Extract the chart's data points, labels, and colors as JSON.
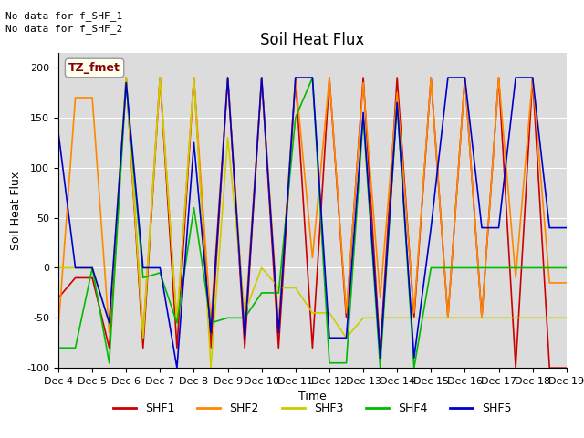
{
  "title": "Soil Heat Flux",
  "ylabel": "Soil Heat Flux",
  "xlabel": "Time",
  "ylim": [
    -100,
    215
  ],
  "text_lines": [
    "No data for f_SHF_1",
    "No data for f_SHF_2"
  ],
  "annotation": "TZ_fmet",
  "x_tick_labels": [
    "Dec 4",
    "Dec 5",
    "Dec 6",
    "Dec 7",
    "Dec 8",
    "Dec 9",
    "Dec 10",
    "Dec 11",
    "Dec 12",
    "Dec 13",
    "Dec 14",
    "Dec 15",
    "Dec 16",
    "Dec 17",
    "Dec 18",
    "Dec 19"
  ],
  "series": {
    "SHF1": {
      "color": "#cc0000",
      "x": [
        0,
        0.5,
        1,
        1.5,
        2,
        2.5,
        3,
        3.5,
        4,
        4.5,
        5,
        5.5,
        6,
        6.5,
        7,
        7.5,
        8,
        8.5,
        9,
        9.5,
        10,
        10.5,
        11,
        11.5,
        12,
        12.5,
        13,
        13.5,
        14,
        14.5,
        15
      ],
      "y": [
        -30,
        -10,
        -10,
        -80,
        190,
        -80,
        190,
        -80,
        190,
        -80,
        190,
        -80,
        190,
        -80,
        190,
        -80,
        190,
        -50,
        190,
        -85,
        190,
        -50,
        190,
        -50,
        190,
        -50,
        190,
        -100,
        190,
        -100,
        -100
      ]
    },
    "SHF2": {
      "color": "#ff8800",
      "x": [
        0,
        0.5,
        1,
        1.5,
        2,
        2.5,
        3,
        3.5,
        4,
        4.5,
        5,
        5.5,
        6,
        6.5,
        7,
        7.5,
        8,
        8.5,
        9,
        9.5,
        10,
        10.5,
        11,
        11.5,
        12,
        12.5,
        13,
        13.5,
        14,
        14.5,
        15
      ],
      "y": [
        -60,
        170,
        170,
        -65,
        190,
        -65,
        190,
        -55,
        190,
        -55,
        190,
        -60,
        190,
        -55,
        190,
        10,
        190,
        -45,
        185,
        -30,
        175,
        -45,
        190,
        -50,
        190,
        -50,
        190,
        -10,
        190,
        -15,
        -15
      ]
    },
    "SHF3": {
      "color": "#cccc00",
      "x": [
        0,
        0.5,
        1,
        1.5,
        2,
        2.5,
        3,
        3.5,
        4,
        4.5,
        5,
        5.5,
        6,
        6.5,
        7,
        7.5,
        8,
        8.5,
        9,
        9.5,
        10,
        10.5,
        11,
        11.5,
        12,
        12.5,
        13,
        13.5,
        14,
        14.5,
        15
      ],
      "y": [
        0,
        0,
        0,
        -55,
        190,
        -70,
        190,
        -55,
        190,
        -100,
        130,
        -45,
        0,
        -20,
        -20,
        -45,
        -45,
        -70,
        -50,
        -50,
        -50,
        -50,
        -50,
        -50,
        -50,
        -50,
        -50,
        -50,
        -50,
        -50,
        -50
      ]
    },
    "SHF4": {
      "color": "#00bb00",
      "x": [
        0,
        0.5,
        1,
        1.5,
        2,
        2.5,
        3,
        3.5,
        4,
        4.5,
        5,
        5.5,
        6,
        6.5,
        7,
        7.5,
        8,
        8.5,
        9,
        9.5,
        10,
        10.5,
        11,
        11.5,
        12,
        12.5,
        13,
        13.5,
        14,
        14.5,
        15
      ],
      "y": [
        -80,
        -80,
        0,
        -95,
        185,
        -10,
        -5,
        -55,
        60,
        -55,
        -50,
        -50,
        -25,
        -25,
        150,
        190,
        -95,
        -95,
        150,
        -100,
        165,
        -100,
        0,
        0,
        0,
        0,
        0,
        0,
        0,
        0,
        0
      ]
    },
    "SHF5": {
      "color": "#0000cc",
      "x": [
        0,
        0.5,
        1,
        1.5,
        2,
        2.5,
        3,
        3.5,
        4,
        4.5,
        5,
        5.5,
        6,
        6.5,
        7,
        7.5,
        8,
        8.5,
        9,
        9.5,
        10,
        10.5,
        11,
        11.5,
        12,
        12.5,
        13,
        13.5,
        14,
        14.5,
        15
      ],
      "y": [
        135,
        0,
        0,
        -55,
        185,
        0,
        0,
        -100,
        125,
        -65,
        190,
        -70,
        190,
        -65,
        190,
        190,
        -70,
        -70,
        155,
        -90,
        165,
        -90,
        40,
        190,
        190,
        40,
        40,
        190,
        190,
        40,
        40
      ]
    }
  },
  "legend": [
    {
      "label": "SHF1",
      "color": "#cc0000"
    },
    {
      "label": "SHF2",
      "color": "#ff8800"
    },
    {
      "label": "SHF3",
      "color": "#cccc00"
    },
    {
      "label": "SHF4",
      "color": "#00bb00"
    },
    {
      "label": "SHF5",
      "color": "#0000cc"
    }
  ],
  "bg_color": "#dcdcdc",
  "fig_bg_color": "#ffffff",
  "yticks": [
    -100,
    -50,
    0,
    50,
    100,
    150,
    200
  ],
  "title_fontsize": 12,
  "axis_fontsize": 9,
  "tick_fontsize": 8
}
